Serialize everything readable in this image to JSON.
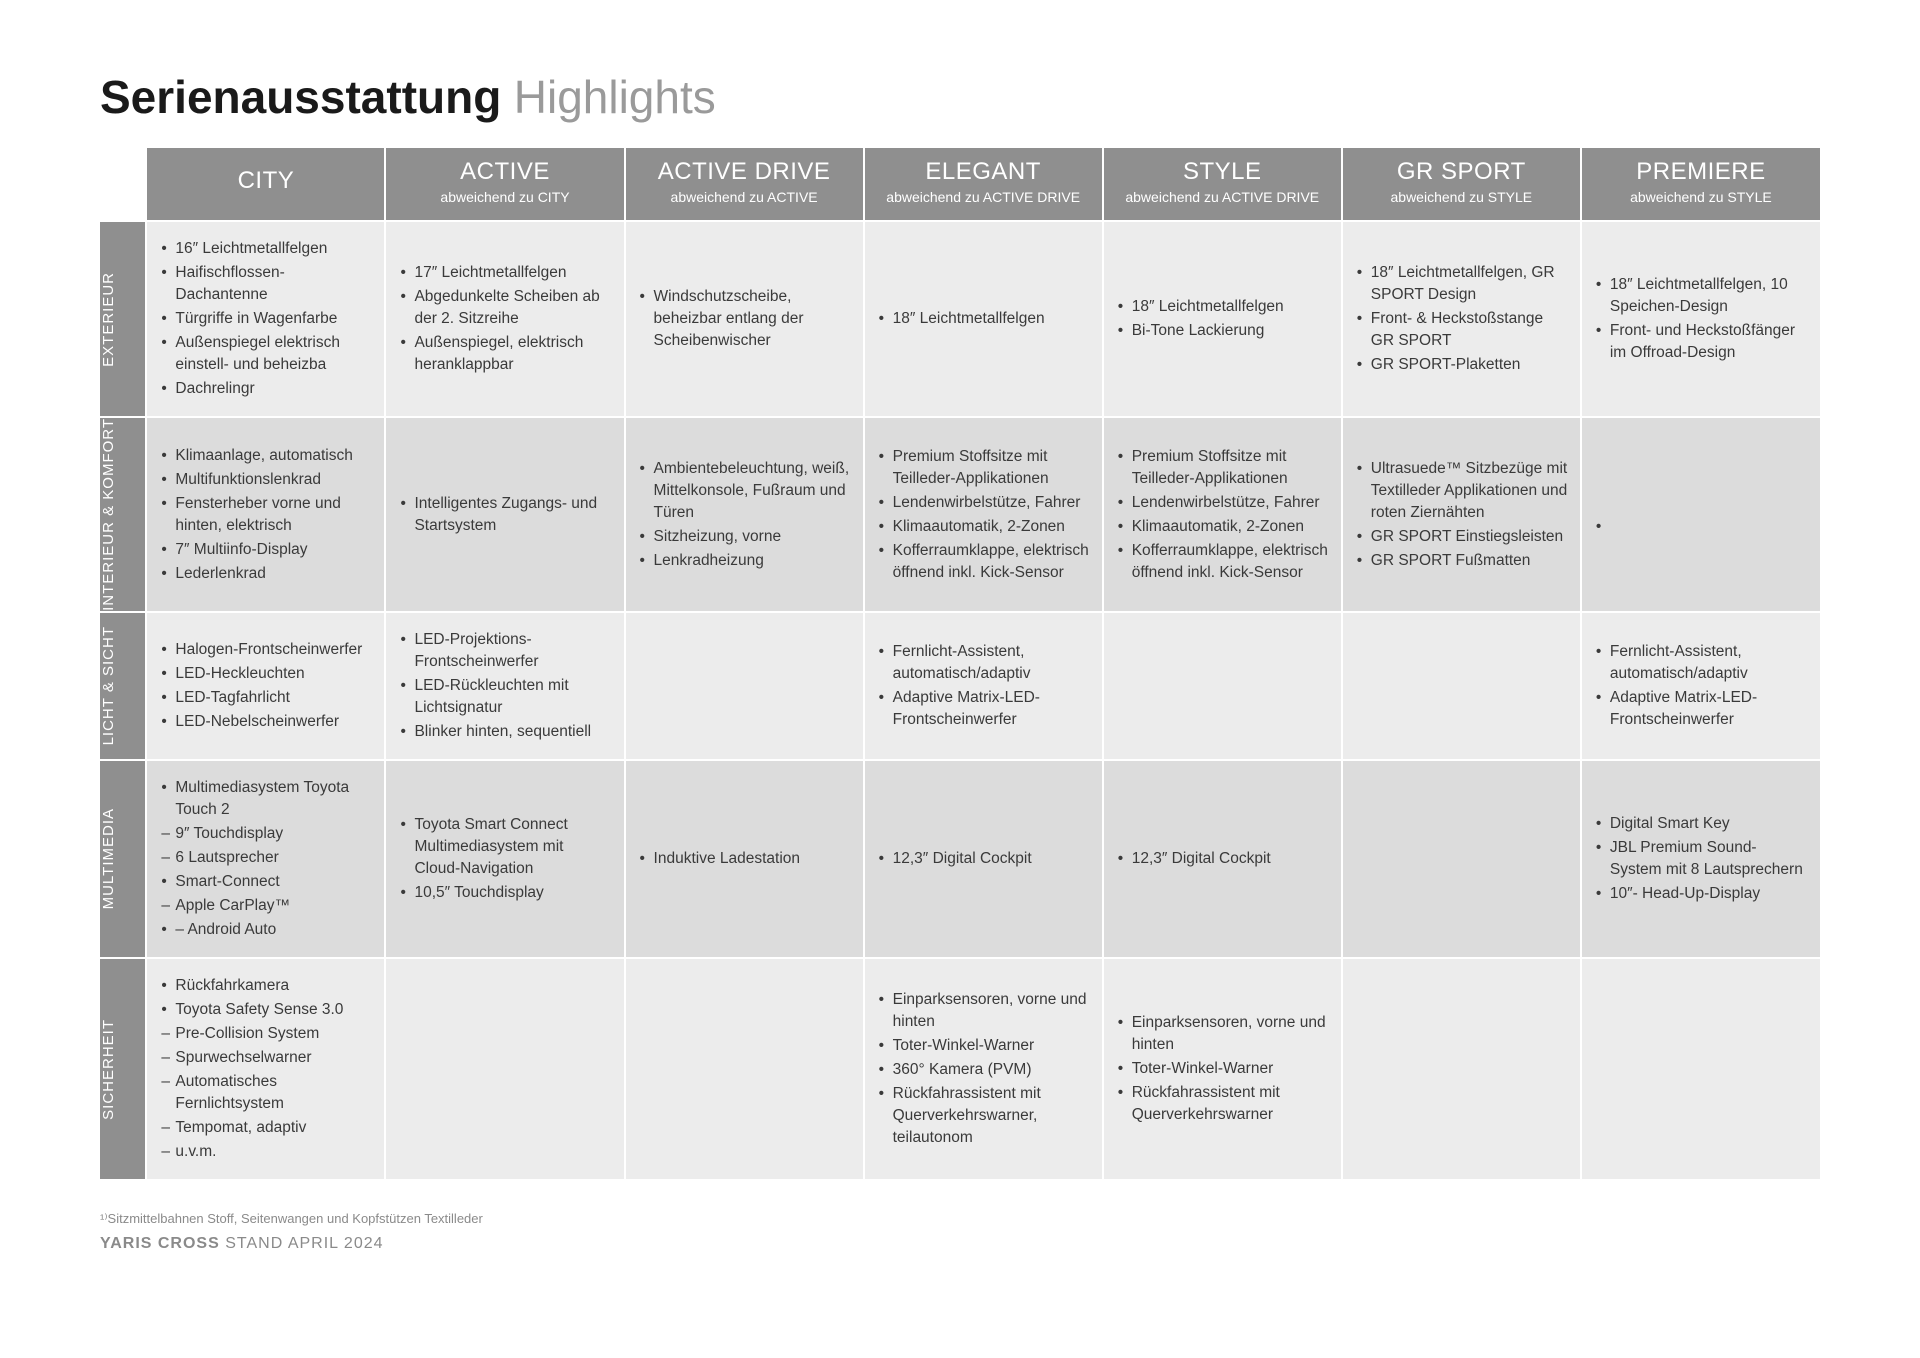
{
  "page": {
    "title_bold": "Serienausstattung",
    "title_light": "Highlights",
    "footnote": "¹⁾Sitzmittelbahnen Stoff, Seitenwangen und Kopfstützen Textilleder",
    "model_bold": "YARIS CROSS",
    "model_rest": " STAND APRIL 2024"
  },
  "style": {
    "header_bg": "#8f8f8f",
    "header_fg": "#ffffff",
    "cell_light": "#ececec",
    "cell_dark": "#dcdcdc",
    "title_fontsize": 46,
    "cell_fontsize": 15.5,
    "colhead_main_fontsize": 24,
    "colhead_sub_fontsize": 14,
    "rowhead_fontsize": 15
  },
  "columns": [
    {
      "main": "CITY",
      "sub": ""
    },
    {
      "main": "ACTIVE",
      "sub": "abweichend zu CITY"
    },
    {
      "main": "ACTIVE DRIVE",
      "sub": "abweichend zu ACTIVE"
    },
    {
      "main": "ELEGANT",
      "sub": "abweichend zu ACTIVE DRIVE"
    },
    {
      "main": "STYLE",
      "sub": "abweichend zu ACTIVE DRIVE"
    },
    {
      "main": "GR SPORT",
      "sub": "abweichend zu STYLE"
    },
    {
      "main": "PREMIERE",
      "sub": "abweichend zu STYLE"
    }
  ],
  "rows": [
    {
      "label": "EXTERIEUR",
      "shade": "light",
      "cells": [
        [
          {
            "m": "bullet",
            "t": "16″ Leichtmetallfelgen"
          },
          {
            "m": "bullet",
            "t": "Haifischflossen-Dachantenne"
          },
          {
            "m": "bullet",
            "t": "Türgriffe in Wagenfarbe"
          },
          {
            "m": "bullet",
            "t": "Außenspiegel elektrisch einstell- und beheizba"
          },
          {
            "m": "bullet",
            "t": "Dachrelingr"
          }
        ],
        [
          {
            "m": "bullet",
            "t": "17″ Leichtmetallfelgen"
          },
          {
            "m": "bullet",
            "t": "Abgedunkelte Scheiben ab der 2. Sitzreihe"
          },
          {
            "m": "bullet",
            "t": "Außenspiegel, elektrisch heranklappbar"
          }
        ],
        [
          {
            "m": "bullet",
            "t": "Windschutzscheibe, beheizbar entlang der Scheibenwischer"
          }
        ],
        [
          {
            "m": "bullet",
            "t": "18″ Leichtmetallfelgen"
          }
        ],
        [
          {
            "m": "bullet",
            "t": "18″ Leichtmetallfelgen"
          },
          {
            "m": "bullet",
            "t": "Bi-Tone Lackierung"
          }
        ],
        [
          {
            "m": "bullet",
            "t": "18″ Leichtmetallfelgen, GR SPORT Design"
          },
          {
            "m": "bullet",
            "t": "Front- & Heckstoßstange GR SPORT"
          },
          {
            "m": "bullet",
            "t": "GR SPORT-Plaketten"
          }
        ],
        [
          {
            "m": "bullet",
            "t": "18″ Leichtmetallfelgen, 10 Speichen-Design"
          },
          {
            "m": "bullet",
            "t": "Front- und Heckstoßfänger im Offroad-Design"
          }
        ]
      ]
    },
    {
      "label": "INTERIEUR & KOMFORT",
      "shade": "dark",
      "cells": [
        [
          {
            "m": "bullet",
            "t": "Klimaanlage, automatisch"
          },
          {
            "m": "bullet",
            "t": "Multifunktionslenkrad"
          },
          {
            "m": "bullet",
            "t": "Fensterheber vorne und hinten, elektrisch"
          },
          {
            "m": "bullet",
            "t": "7″ Multiinfo-Display"
          },
          {
            "m": "bullet",
            "t": "Lederlenkrad"
          }
        ],
        [
          {
            "m": "bullet",
            "t": "Intelligentes Zugangs- und Startsystem"
          }
        ],
        [
          {
            "m": "bullet",
            "t": "Ambientebeleuchtung, weiß, Mittelkonsole, Fußraum und Türen"
          },
          {
            "m": "bullet",
            "t": "Sitzheizung, vorne"
          },
          {
            "m": "bullet",
            "t": "Lenkradheizung"
          }
        ],
        [
          {
            "m": "bullet",
            "t": "Premium Stoffsitze mit Teilleder-Applikationen"
          },
          {
            "m": "bullet",
            "t": "Lendenwirbelstütze, Fahrer"
          },
          {
            "m": "bullet",
            "t": "Klimaautomatik, 2-Zonen"
          },
          {
            "m": "bullet",
            "t": "Kofferraumklappe, elektrisch öffnend inkl. Kick-Sensor"
          }
        ],
        [
          {
            "m": "bullet",
            "t": "Premium Stoffsitze mit Teilleder-Applikationen"
          },
          {
            "m": "bullet",
            "t": "Lendenwirbelstütze, Fahrer"
          },
          {
            "m": "bullet",
            "t": "Klimaautomatik, 2-Zonen"
          },
          {
            "m": "bullet",
            "t": "Kofferraumklappe, elektrisch öffnend inkl. Kick-Sensor"
          }
        ],
        [
          {
            "m": "bullet",
            "t": "Ultrasuede™ Sitzbezüge mit Textilleder Applikationen und roten Ziernähten"
          },
          {
            "m": "bullet",
            "t": "GR SPORT Einstiegsleisten"
          },
          {
            "m": "bullet",
            "t": "GR SPORT Fußmatten"
          }
        ],
        [
          {
            "m": "bullet",
            "t": ""
          }
        ]
      ]
    },
    {
      "label": "LICHT & SICHT",
      "shade": "light",
      "cells": [
        [
          {
            "m": "bullet",
            "t": "Halogen-Frontscheinwerfer"
          },
          {
            "m": "bullet",
            "t": "LED-Heckleuchten"
          },
          {
            "m": "bullet",
            "t": "LED-Tagfahrlicht"
          },
          {
            "m": "bullet",
            "t": "LED-Nebelscheinwerfer"
          }
        ],
        [
          {
            "m": "bullet",
            "t": "LED-Projektions-Frontscheinwerfer"
          },
          {
            "m": "bullet",
            "t": "LED-Rückleuchten mit Lichtsignatur"
          },
          {
            "m": "bullet",
            "t": "Blinker hinten, sequentiell"
          }
        ],
        [],
        [
          {
            "m": "bullet",
            "t": "Fernlicht-Assistent, automatisch/adaptiv"
          },
          {
            "m": "bullet",
            "t": "Adaptive Matrix-LED-Frontscheinwerfer"
          }
        ],
        [],
        [],
        [
          {
            "m": "bullet",
            "t": "Fernlicht-Assistent, automatisch/adaptiv"
          },
          {
            "m": "bullet",
            "t": "Adaptive Matrix-LED-Frontscheinwerfer"
          }
        ]
      ]
    },
    {
      "label": "MULTIMEDIA",
      "shade": "dark",
      "cells": [
        [
          {
            "m": "bullet",
            "t": "Multimediasystem Toyota Touch 2"
          },
          {
            "m": "dash",
            "t": "9″ Touchdisplay"
          },
          {
            "m": "dash",
            "t": "6 Lautsprecher"
          },
          {
            "m": "bullet",
            "t": "Smart-Connect"
          },
          {
            "m": "dash",
            "t": "Apple CarPlay™"
          },
          {
            "m": "bullet",
            "t": "– Android Auto"
          }
        ],
        [
          {
            "m": "bullet",
            "t": "Toyota Smart Connect Multimediasystem mit Cloud-Navigation"
          },
          {
            "m": "bullet",
            "t": "10,5″ Touchdisplay"
          }
        ],
        [
          {
            "m": "bullet",
            "t": "Induktive Ladestation"
          }
        ],
        [
          {
            "m": "bullet",
            "t": "12,3″ Digital Cockpit"
          }
        ],
        [
          {
            "m": "bullet",
            "t": "12,3″ Digital Cockpit"
          }
        ],
        [],
        [
          {
            "m": "bullet",
            "t": "Digital Smart Key"
          },
          {
            "m": "bullet",
            "t": "JBL Premium Sound-System mit 8 Lautsprechern"
          },
          {
            "m": "bullet",
            "t": "10″- Head-Up-Display"
          }
        ]
      ]
    },
    {
      "label": "SICHERHEIT",
      "shade": "light",
      "cells": [
        [
          {
            "m": "bullet",
            "t": "Rückfahrkamera"
          },
          {
            "m": "bullet",
            "t": "Toyota Safety Sense 3.0"
          },
          {
            "m": "dash",
            "t": "Pre-Collision System"
          },
          {
            "m": "dash",
            "t": "Spurwechselwarner"
          },
          {
            "m": "dash",
            "t": "Automatisches Fernlichtsystem"
          },
          {
            "m": "dash",
            "t": "Tempomat, adaptiv"
          },
          {
            "m": "dash",
            "t": "u.v.m."
          }
        ],
        [],
        [],
        [
          {
            "m": "bullet",
            "t": "Einparksensoren, vorne und hinten"
          },
          {
            "m": "bullet",
            "t": "Toter-Winkel-Warner"
          },
          {
            "m": "bullet",
            "t": "360° Kamera (PVM)"
          },
          {
            "m": "bullet",
            "t": "Rückfahrassistent mit Querverkehrswarner, teilautonom"
          }
        ],
        [
          {
            "m": "bullet",
            "t": "Einparksensoren, vorne und hinten"
          },
          {
            "m": "bullet",
            "t": "Toter-Winkel-Warner"
          },
          {
            "m": "bullet",
            "t": "Rückfahrassistent mit Querverkehrswarner"
          }
        ],
        [],
        []
      ]
    }
  ]
}
